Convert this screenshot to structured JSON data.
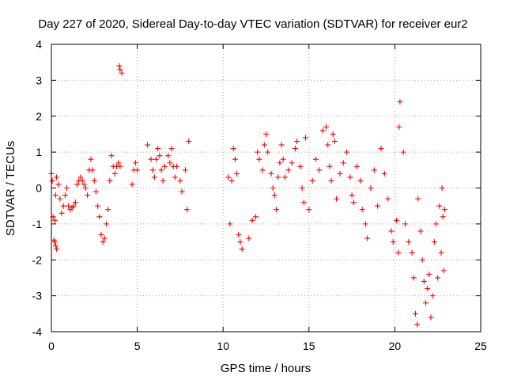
{
  "chart_data": {
    "type": "scatter",
    "title": "Day 227 of 2020, Sidereal Day-to-day VTEC variation (SDTVAR) for receiver eur2",
    "xlabel": "GPS time / hours",
    "ylabel": "SDTVAR / TECUs",
    "xlim": [
      0,
      25
    ],
    "ylim": [
      -4,
      4
    ],
    "xticks": [
      0,
      5,
      10,
      15,
      20,
      25
    ],
    "yticks": [
      -4,
      -3,
      -2,
      -1,
      0,
      1,
      2,
      3,
      4
    ],
    "grid": true,
    "marker": "plus",
    "color": "#ff0000",
    "series": [
      {
        "name": "SDTVAR",
        "points": [
          [
            0.0,
            0.4
          ],
          [
            0.05,
            0.2
          ],
          [
            0.1,
            -0.8
          ],
          [
            0.15,
            -1.45
          ],
          [
            0.2,
            -1.5
          ],
          [
            0.25,
            -1.6
          ],
          [
            0.3,
            -1.7
          ],
          [
            0.2,
            -0.9
          ],
          [
            0.25,
            -0.2
          ],
          [
            0.3,
            0.3
          ],
          [
            0.4,
            0.1
          ],
          [
            0.5,
            -0.3
          ],
          [
            0.6,
            -0.7
          ],
          [
            0.7,
            -0.5
          ],
          [
            0.8,
            -0.2
          ],
          [
            0.9,
            0.0
          ],
          [
            1.0,
            -0.5
          ],
          [
            1.1,
            -0.6
          ],
          [
            1.2,
            -0.55
          ],
          [
            1.3,
            -0.5
          ],
          [
            1.4,
            -0.4
          ],
          [
            1.5,
            0.1
          ],
          [
            1.6,
            0.2
          ],
          [
            1.7,
            0.3
          ],
          [
            1.8,
            0.2
          ],
          [
            1.9,
            0.1
          ],
          [
            2.0,
            0.0
          ],
          [
            2.1,
            -0.2
          ],
          [
            2.2,
            0.5
          ],
          [
            2.3,
            0.8
          ],
          [
            2.4,
            0.5
          ],
          [
            2.5,
            0.2
          ],
          [
            2.6,
            -0.1
          ],
          [
            2.7,
            -0.5
          ],
          [
            2.8,
            -0.8
          ],
          [
            2.9,
            -1.3
          ],
          [
            3.0,
            -1.5
          ],
          [
            3.1,
            -1.4
          ],
          [
            3.2,
            -1.0
          ],
          [
            3.3,
            -0.6
          ],
          [
            3.4,
            0.2
          ],
          [
            3.5,
            0.9
          ],
          [
            3.6,
            0.6
          ],
          [
            3.7,
            0.4
          ],
          [
            3.8,
            0.6
          ],
          [
            3.9,
            0.7
          ],
          [
            4.0,
            0.6
          ],
          [
            3.95,
            3.4
          ],
          [
            4.0,
            3.3
          ],
          [
            4.1,
            3.2
          ],
          [
            4.7,
            0.1
          ],
          [
            4.8,
            0.5
          ],
          [
            4.9,
            0.7
          ],
          [
            5.0,
            0.5
          ],
          [
            5.6,
            1.2
          ],
          [
            5.8,
            0.8
          ],
          [
            5.9,
            0.5
          ],
          [
            6.0,
            0.3
          ],
          [
            6.1,
            0.8
          ],
          [
            6.2,
            1.1
          ],
          [
            6.3,
            0.9
          ],
          [
            6.4,
            0.5
          ],
          [
            6.5,
            0.2
          ],
          [
            6.6,
            0.6
          ],
          [
            6.8,
            0.9
          ],
          [
            6.9,
            0.7
          ],
          [
            7.0,
            1.1
          ],
          [
            7.1,
            0.6
          ],
          [
            7.2,
            0.3
          ],
          [
            7.3,
            0.6
          ],
          [
            7.5,
            0.2
          ],
          [
            7.6,
            -0.1
          ],
          [
            7.8,
            0.5
          ],
          [
            7.9,
            -0.6
          ],
          [
            8.0,
            1.3
          ],
          [
            10.3,
            0.3
          ],
          [
            10.4,
            -1.0
          ],
          [
            10.5,
            0.2
          ],
          [
            10.6,
            1.1
          ],
          [
            10.7,
            0.8
          ],
          [
            10.8,
            0.4
          ],
          [
            10.9,
            -1.3
          ],
          [
            11.0,
            -1.5
          ],
          [
            11.1,
            -1.7
          ],
          [
            11.5,
            -1.4
          ],
          [
            11.7,
            -0.9
          ],
          [
            11.9,
            -0.8
          ],
          [
            12.0,
            1.0
          ],
          [
            12.1,
            0.8
          ],
          [
            12.3,
            0.5
          ],
          [
            12.4,
            1.2
          ],
          [
            12.5,
            1.5
          ],
          [
            12.6,
            1.0
          ],
          [
            12.8,
            0.4
          ],
          [
            12.9,
            0.0
          ],
          [
            13.0,
            -0.2
          ],
          [
            13.1,
            -0.6
          ],
          [
            13.2,
            0.3
          ],
          [
            13.3,
            0.7
          ],
          [
            13.4,
            1.2
          ],
          [
            13.5,
            0.8
          ],
          [
            13.6,
            0.3
          ],
          [
            13.8,
            0.5
          ],
          [
            14.0,
            0.7
          ],
          [
            14.2,
            1.1
          ],
          [
            14.3,
            1.3
          ],
          [
            14.5,
            0.6
          ],
          [
            14.6,
            0.0
          ],
          [
            14.7,
            -0.4
          ],
          [
            14.8,
            1.4
          ],
          [
            15.0,
            -0.6
          ],
          [
            15.2,
            0.2
          ],
          [
            15.4,
            0.8
          ],
          [
            15.6,
            0.5
          ],
          [
            15.8,
            1.6
          ],
          [
            16.0,
            1.7
          ],
          [
            16.1,
            1.2
          ],
          [
            16.2,
            0.6
          ],
          [
            16.3,
            0.2
          ],
          [
            16.4,
            1.5
          ],
          [
            16.5,
            1.3
          ],
          [
            16.6,
            -0.3
          ],
          [
            16.8,
            0.4
          ],
          [
            17.0,
            0.7
          ],
          [
            17.2,
            1.0
          ],
          [
            17.4,
            0.3
          ],
          [
            17.5,
            -0.2
          ],
          [
            17.6,
            -0.4
          ],
          [
            17.8,
            0.6
          ],
          [
            18.0,
            0.2
          ],
          [
            18.1,
            -0.6
          ],
          [
            18.3,
            -1.0
          ],
          [
            18.4,
            -1.4
          ],
          [
            18.6,
            0.0
          ],
          [
            18.8,
            0.5
          ],
          [
            19.0,
            -0.5
          ],
          [
            19.2,
            1.1
          ],
          [
            19.4,
            0.4
          ],
          [
            19.6,
            -0.3
          ],
          [
            19.8,
            -1.2
          ],
          [
            19.9,
            -1.5
          ],
          [
            20.1,
            -0.9
          ],
          [
            20.2,
            -1.8
          ],
          [
            20.3,
            2.4
          ],
          [
            20.25,
            1.7
          ],
          [
            20.5,
            1.0
          ],
          [
            20.6,
            -1.0
          ],
          [
            20.8,
            -1.5
          ],
          [
            21.0,
            -1.8
          ],
          [
            21.1,
            -2.5
          ],
          [
            21.2,
            -3.5
          ],
          [
            21.3,
            -3.8
          ],
          [
            21.35,
            -0.3
          ],
          [
            21.5,
            -1.2
          ],
          [
            21.6,
            -2.0
          ],
          [
            21.7,
            -2.6
          ],
          [
            21.8,
            -3.2
          ],
          [
            21.9,
            -2.8
          ],
          [
            22.0,
            -2.4
          ],
          [
            22.1,
            -3.6
          ],
          [
            22.2,
            -3.0
          ],
          [
            22.3,
            -1.5
          ],
          [
            22.4,
            -1.0
          ],
          [
            22.5,
            -2.5
          ],
          [
            22.6,
            -0.5
          ],
          [
            22.7,
            -1.8
          ],
          [
            22.75,
            0.0
          ],
          [
            22.8,
            -0.8
          ],
          [
            22.85,
            -2.3
          ],
          [
            22.9,
            -0.6
          ]
        ]
      }
    ]
  }
}
